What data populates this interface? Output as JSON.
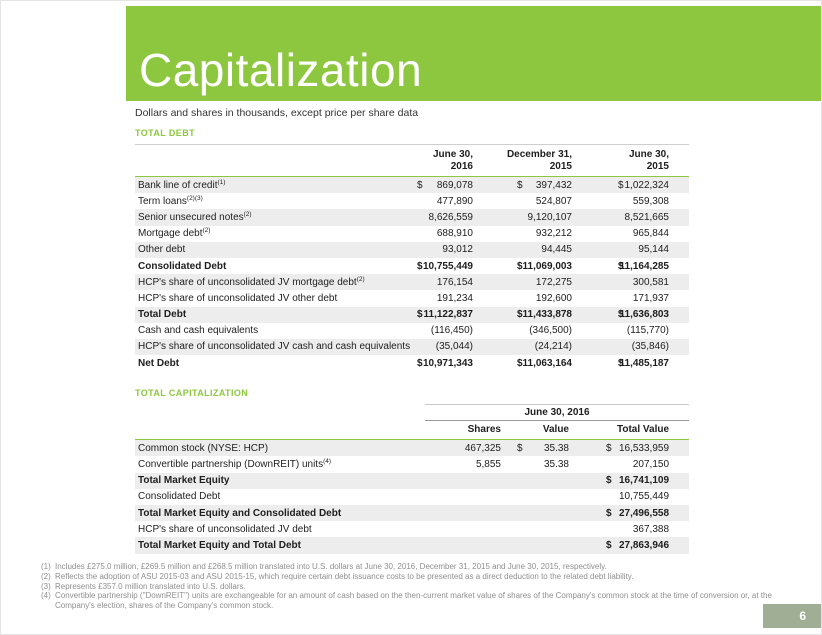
{
  "page": {
    "title": "Capitalization",
    "subtitle": "Dollars and shares in thousands, except price per share data",
    "page_number": "6"
  },
  "colors": {
    "accent_green": "#8DC63F",
    "badge_green": "#9FAE94",
    "row_shade": "#EDEDED"
  },
  "total_debt": {
    "label": "TOTAL DEBT",
    "columns": [
      "June 30,\n2016",
      "December 31,\n2015",
      "June 30,\n2015"
    ],
    "rows": [
      {
        "label": "Bank line of credit",
        "sup": "(1)",
        "bold": false,
        "values": [
          [
            "$",
            "869,078"
          ],
          [
            "$",
            "397,432"
          ],
          [
            "$",
            "1,022,324"
          ]
        ]
      },
      {
        "label": "Term loans",
        "sup": "(2)(3)",
        "bold": false,
        "values": [
          [
            "",
            "477,890"
          ],
          [
            "",
            "524,807"
          ],
          [
            "",
            "559,308"
          ]
        ]
      },
      {
        "label": "Senior unsecured notes",
        "sup": "(2)",
        "bold": false,
        "values": [
          [
            "",
            "8,626,559"
          ],
          [
            "",
            "9,120,107"
          ],
          [
            "",
            "8,521,665"
          ]
        ]
      },
      {
        "label": "Mortgage debt",
        "sup": "(2)",
        "bold": false,
        "values": [
          [
            "",
            "688,910"
          ],
          [
            "",
            "932,212"
          ],
          [
            "",
            "965,844"
          ]
        ]
      },
      {
        "label": "Other debt",
        "sup": "",
        "bold": false,
        "values": [
          [
            "",
            "93,012"
          ],
          [
            "",
            "94,445"
          ],
          [
            "",
            "95,144"
          ]
        ]
      },
      {
        "label": "Consolidated Debt",
        "sup": "",
        "bold": true,
        "values": [
          [
            "$",
            "10,755,449"
          ],
          [
            "$",
            "11,069,003"
          ],
          [
            "$",
            "11,164,285"
          ]
        ]
      },
      {
        "label": "HCP's share of unconsolidated JV mortgage debt",
        "sup": "(2)",
        "bold": false,
        "values": [
          [
            "",
            "176,154"
          ],
          [
            "",
            "172,275"
          ],
          [
            "",
            "300,581"
          ]
        ]
      },
      {
        "label": "HCP's share of unconsolidated JV other debt",
        "sup": "",
        "bold": false,
        "values": [
          [
            "",
            "191,234"
          ],
          [
            "",
            "192,600"
          ],
          [
            "",
            "171,937"
          ]
        ]
      },
      {
        "label": "Total Debt",
        "sup": "",
        "bold": true,
        "values": [
          [
            "$",
            "11,122,837"
          ],
          [
            "$",
            "11,433,878"
          ],
          [
            "$",
            "11,636,803"
          ]
        ]
      },
      {
        "label": "Cash and cash equivalents",
        "sup": "",
        "bold": false,
        "values": [
          [
            "",
            "(116,450)"
          ],
          [
            "",
            "(346,500)"
          ],
          [
            "",
            "(115,770)"
          ]
        ]
      },
      {
        "label": "HCP's share of unconsolidated JV cash and cash equivalents",
        "sup": "",
        "bold": false,
        "values": [
          [
            "",
            "(35,044)"
          ],
          [
            "",
            "(24,214)"
          ],
          [
            "",
            "(35,846)"
          ]
        ]
      },
      {
        "label": "Net Debt",
        "sup": "",
        "bold": true,
        "values": [
          [
            "$",
            "10,971,343"
          ],
          [
            "$",
            "11,063,164"
          ],
          [
            "$",
            "11,485,187"
          ]
        ]
      }
    ]
  },
  "total_capitalization": {
    "label": "TOTAL CAPITALIZATION",
    "date_header": "June 30, 2016",
    "columns": [
      "Shares",
      "Value",
      "Total Value"
    ],
    "rows": [
      {
        "label": "Common stock (NYSE: HCP)",
        "sup": "",
        "bold": false,
        "values": [
          [
            "",
            "467,325"
          ],
          [
            "$",
            "35.38"
          ],
          [
            "$",
            "16,533,959"
          ]
        ]
      },
      {
        "label": "Convertible partnership (DownREIT) units",
        "sup": "(4)",
        "bold": false,
        "values": [
          [
            "",
            "5,855"
          ],
          [
            "",
            "35.38"
          ],
          [
            "",
            "207,150"
          ]
        ]
      },
      {
        "label": "Total Market Equity",
        "sup": "",
        "bold": true,
        "values": [
          [
            "",
            ""
          ],
          [
            "",
            ""
          ],
          [
            "$",
            "16,741,109"
          ]
        ]
      },
      {
        "label": "Consolidated Debt",
        "sup": "",
        "bold": false,
        "values": [
          [
            "",
            ""
          ],
          [
            "",
            ""
          ],
          [
            "",
            "10,755,449"
          ]
        ]
      },
      {
        "label": "Total Market Equity and Consolidated Debt",
        "sup": "",
        "bold": true,
        "values": [
          [
            "",
            ""
          ],
          [
            "",
            ""
          ],
          [
            "$",
            "27,496,558"
          ]
        ]
      },
      {
        "label": "HCP's share of unconsolidated JV debt",
        "sup": "",
        "bold": false,
        "values": [
          [
            "",
            ""
          ],
          [
            "",
            ""
          ],
          [
            "",
            "367,388"
          ]
        ]
      },
      {
        "label": "Total Market Equity and Total Debt",
        "sup": "",
        "bold": true,
        "values": [
          [
            "",
            ""
          ],
          [
            "",
            ""
          ],
          [
            "$",
            "27,863,946"
          ]
        ]
      }
    ]
  },
  "footnotes": [
    {
      "num": "(1)",
      "text": "Includes £275.0 million, £269.5 million and £268.5 million translated into U.S. dollars at June 30, 2016, December 31, 2015 and June 30, 2015, respectively."
    },
    {
      "num": "(2)",
      "text": "Reflects the adoption of ASU 2015-03 and ASU 2015-15, which require certain debt issuance costs to be presented as a direct deduction to the related debt liability."
    },
    {
      "num": "(3)",
      "text": "Represents £357.0 million translated into U.S. dollars."
    },
    {
      "num": "(4)",
      "text": "Convertible partnership (\"DownREIT\") units are exchangeable for an amount of cash based on the then-current market value of shares of the Company's common stock at the time of conversion or, at the Company's election, shares of the Company's common stock."
    }
  ]
}
